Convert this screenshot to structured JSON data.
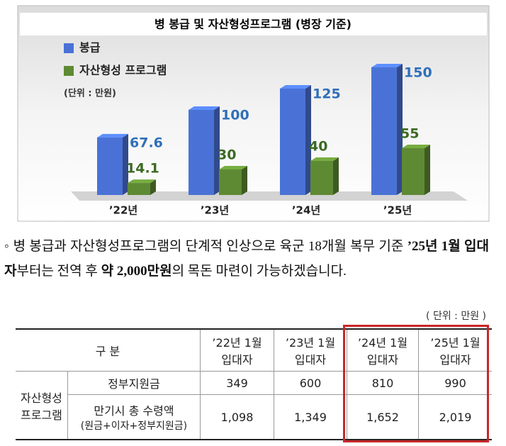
{
  "chart_data": {
    "type": "bar3d",
    "title": "병 봉급 및 자산형성프로그램 (병장 기준)",
    "unit_note": "(단위 : 만원)",
    "categories": [
      "’22년",
      "’23년",
      "’24년",
      "’25년"
    ],
    "series": [
      {
        "name": "봉급",
        "color": "#4a72d6",
        "values": [
          67.6,
          100,
          125,
          150
        ],
        "label_color": "#2f6fb8"
      },
      {
        "name": "자산형성 프로그램",
        "color": "#5f8a34",
        "values": [
          14.1,
          30,
          40,
          55
        ],
        "label_color": "#3c6a24"
      }
    ]
  },
  "text": {
    "segments": [
      {
        "text": "병 봉급과 자산형성프로그램의 단계적 인상으로 육군 18개월 복무 기준 ",
        "bold": false
      },
      {
        "text": "’25년 1월 입대자",
        "bold": true
      },
      {
        "text": "부터는 전역 후 ",
        "bold": false
      },
      {
        "text": "약 2,000만원",
        "bold": true
      },
      {
        "text": "의 목돈 마련이 가능하겠습니다.",
        "bold": false
      }
    ]
  },
  "table": {
    "unit": "( 단위 : 만원 )",
    "corner": "구 분",
    "columns": [
      [
        "’22년 1월",
        "입대자"
      ],
      [
        "’23년 1월",
        "입대자"
      ],
      [
        "’24년 1월",
        "입대자"
      ],
      [
        "’25년 1월",
        "입대자"
      ]
    ],
    "group": [
      "자산형성",
      "프로그램"
    ],
    "rows": [
      {
        "label": [
          "정부지원금"
        ],
        "cells": [
          "349",
          "600",
          "810",
          "990"
        ]
      },
      {
        "label": [
          "만기시 총 수령액",
          "(원금+이자+정부지원금)"
        ],
        "cells": [
          "1,098",
          "1,349",
          "1,652",
          "2,019"
        ]
      }
    ]
  }
}
